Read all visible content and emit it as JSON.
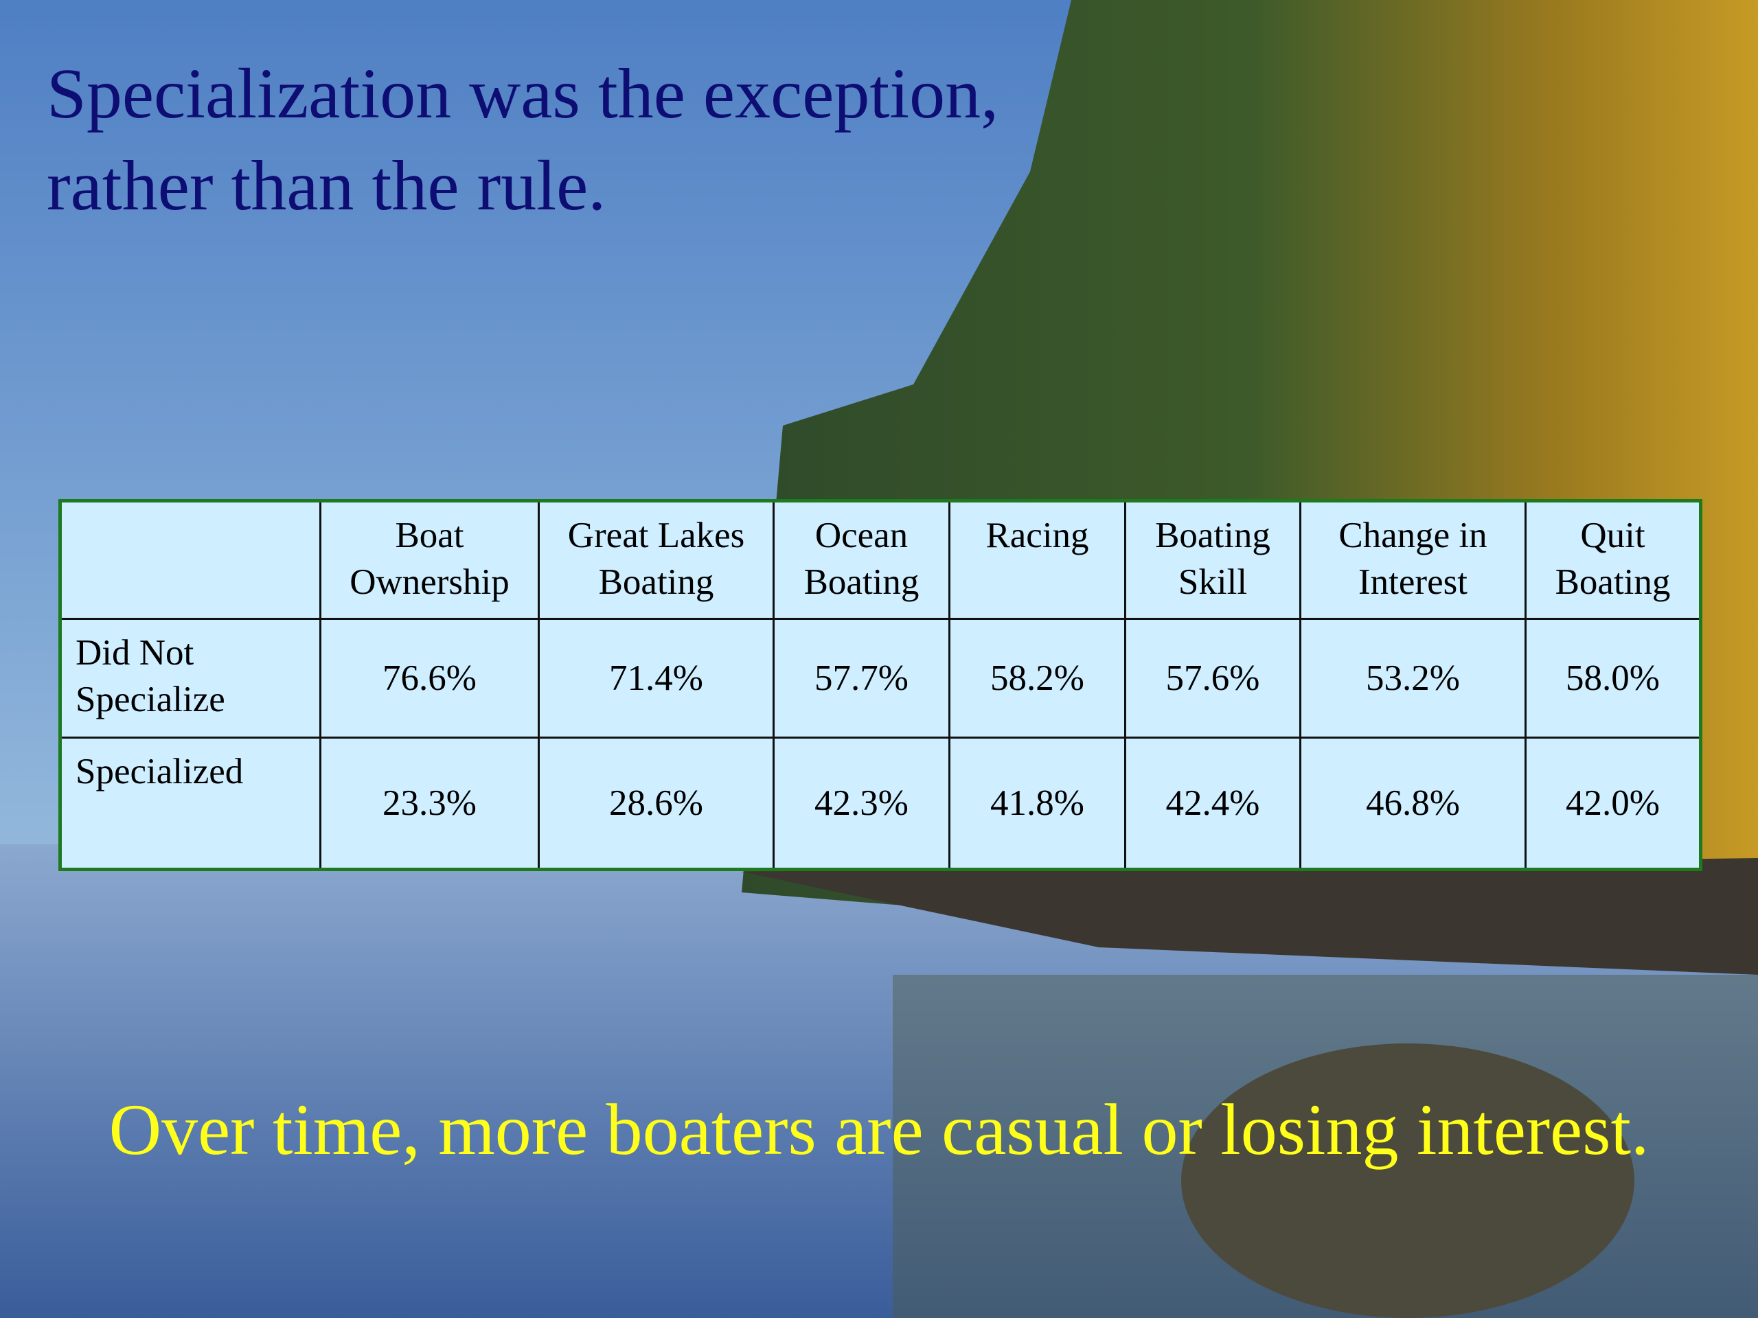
{
  "title": {
    "lines": [
      "Specialization was the exception,",
      "rather than the rule."
    ]
  },
  "table": {
    "header": [
      [
        "Boat",
        "Ownership"
      ],
      [
        "Great Lakes",
        "Boating"
      ],
      [
        "Ocean",
        "Boating"
      ],
      [
        "Racing"
      ],
      [
        "Boating",
        "Skill"
      ],
      [
        "Change in",
        "Interest"
      ],
      [
        "Quit",
        "Boating"
      ]
    ],
    "rows": [
      {
        "label": [
          "Did Not",
          "Specialize"
        ],
        "cells": [
          "76.6%",
          "71.4%",
          "57.7%",
          "58.2%",
          "57.6%",
          "53.2%",
          "58.0%"
        ]
      },
      {
        "label": [
          "Specialized"
        ],
        "cells": [
          "23.3%",
          "28.6%",
          "42.3%",
          "41.8%",
          "42.4%",
          "46.8%",
          "42.0%"
        ]
      }
    ]
  },
  "footer": {
    "text": "Over time, more boaters are casual or losing interest."
  }
}
